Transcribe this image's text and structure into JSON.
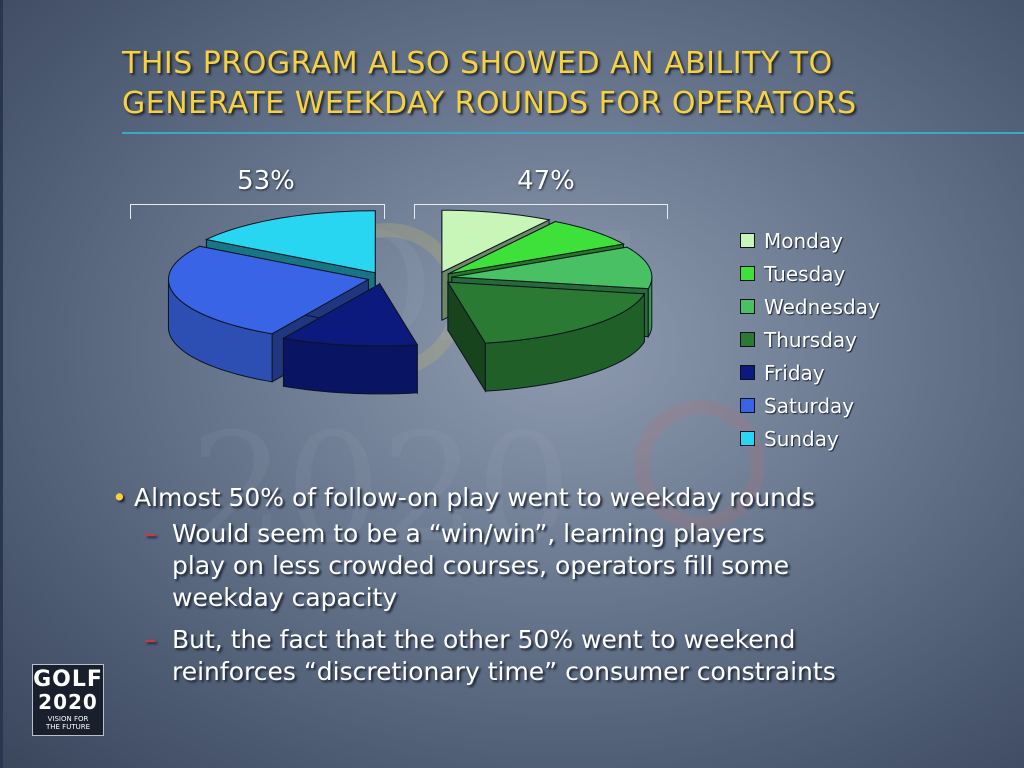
{
  "title_lines": [
    "THIS PROGRAM ALSO SHOWED AN ABILITY TO",
    "GENERATE WEEKDAY ROUNDS FOR OPERATORS"
  ],
  "colors": {
    "title": "#f7d23c",
    "rule": "#39a9c9",
    "Monday": "#c8f5b8",
    "Tuesday": "#3ee03a",
    "Wednesday": "#49c064",
    "Thursday": "#2a7a34",
    "Friday": "#0c1a7e",
    "Saturday": "#3a64e6",
    "Sunday": "#28d6f2"
  },
  "chart_data": {
    "type": "pie",
    "categories": [
      "Monday",
      "Tuesday",
      "Wednesday",
      "Thursday",
      "Friday",
      "Saturday",
      "Sunday"
    ],
    "values": [
      9,
      8,
      11,
      19,
      11,
      26,
      16
    ],
    "groups": [
      {
        "label": "53%",
        "members": [
          "Friday",
          "Saturday",
          "Sunday"
        ],
        "value": 53
      },
      {
        "label": "47%",
        "members": [
          "Monday",
          "Tuesday",
          "Wednesday",
          "Thursday"
        ],
        "value": 47
      }
    ],
    "legend": [
      "Monday",
      "Tuesday",
      "Wednesday",
      "Thursday",
      "Friday",
      "Saturday",
      "Sunday"
    ],
    "legend_position": "right",
    "style": "3d-exploded"
  },
  "bullets": {
    "main": "Almost 50% of follow-on play went to weekday rounds",
    "main_mark": "•",
    "sub": [
      {
        "mark": "–",
        "lines": [
          "Would seem to be a “win/win”, learning players",
          "play on less crowded courses, operators fill some",
          "weekday capacity"
        ]
      },
      {
        "mark": "–",
        "lines": [
          "But, the fact that the other 50% went to weekend",
          "reinforces “discretionary time” consumer constraints"
        ]
      }
    ]
  },
  "logo": {
    "top": "GOLF",
    "middle": "2020",
    "line1": "VISION FOR",
    "line2": "THE FUTURE"
  },
  "watermark": {
    "top": "GOLF",
    "bottom": "2020"
  }
}
